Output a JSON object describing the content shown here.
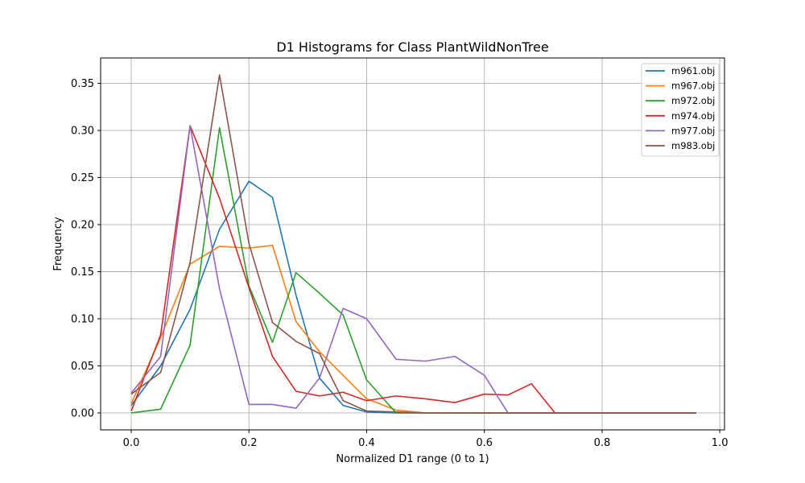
{
  "chart_data": {
    "type": "line",
    "title": "D1 Histograms for Class PlantWildNonTree",
    "xlabel": "Normalized D1 range (0 to 1)",
    "ylabel": "Frequency",
    "xlim": [
      -0.052,
      1.008
    ],
    "ylim": [
      -0.018,
      0.377
    ],
    "xticks": [
      0.0,
      0.2,
      0.4,
      0.6,
      0.8,
      1.0
    ],
    "xtick_labels": [
      "0.0",
      "0.2",
      "0.4",
      "0.6",
      "0.8",
      "1.0"
    ],
    "yticks": [
      0.0,
      0.05,
      0.1,
      0.15,
      0.2,
      0.25,
      0.3,
      0.35
    ],
    "ytick_labels": [
      "0.00",
      "0.05",
      "0.10",
      "0.15",
      "0.20",
      "0.25",
      "0.30",
      "0.35"
    ],
    "grid": true,
    "legend_position": "top-right",
    "x": [
      0.0,
      0.05,
      0.1,
      0.15,
      0.2,
      0.24,
      0.28,
      0.32,
      0.36,
      0.4,
      0.45,
      0.5,
      0.55,
      0.6,
      0.64,
      0.68,
      0.72,
      0.76,
      0.8,
      0.84,
      0.88,
      0.92,
      0.96
    ],
    "series": [
      {
        "name": "m961.obj",
        "color": "#1f77b4",
        "values": [
          0.008,
          0.05,
          0.11,
          0.195,
          0.246,
          0.229,
          0.125,
          0.037,
          0.008,
          0.001,
          0,
          0,
          0,
          0,
          0,
          0,
          0,
          0,
          0,
          0,
          0,
          0,
          0
        ]
      },
      {
        "name": "m967.obj",
        "color": "#ff7f0e",
        "values": [
          0.01,
          0.08,
          0.158,
          0.177,
          0.175,
          0.178,
          0.097,
          0.065,
          0.04,
          0.015,
          0.003,
          0,
          0,
          0,
          0,
          0,
          0,
          0,
          0,
          0,
          0,
          0,
          0
        ]
      },
      {
        "name": "m972.obj",
        "color": "#2ca02c",
        "values": [
          0.0,
          0.004,
          0.072,
          0.303,
          0.135,
          0.075,
          0.149,
          0.127,
          0.104,
          0.035,
          0.0,
          0,
          0,
          0,
          0,
          0,
          0,
          0,
          0,
          0,
          0,
          0,
          0
        ]
      },
      {
        "name": "m974.obj",
        "color": "#d62728",
        "values": [
          0.002,
          0.083,
          0.305,
          0.228,
          0.133,
          0.06,
          0.023,
          0.018,
          0.022,
          0.013,
          0.018,
          0.015,
          0.011,
          0.02,
          0.019,
          0.031,
          0.0,
          0,
          0,
          0,
          0,
          0,
          0
        ]
      },
      {
        "name": "m977.obj",
        "color": "#9467bd",
        "values": [
          0.021,
          0.06,
          0.305,
          0.132,
          0.009,
          0.009,
          0.005,
          0.037,
          0.111,
          0.1,
          0.057,
          0.055,
          0.06,
          0.04,
          0.0,
          0,
          0,
          0,
          0,
          0,
          0,
          0,
          0
        ]
      },
      {
        "name": "m983.obj",
        "color": "#8c564b",
        "values": [
          0.02,
          0.043,
          0.16,
          0.359,
          0.18,
          0.096,
          0.076,
          0.063,
          0.013,
          0.002,
          0.001,
          0,
          0,
          0,
          0,
          0,
          0,
          0,
          0,
          0,
          0,
          0,
          0
        ]
      }
    ]
  }
}
